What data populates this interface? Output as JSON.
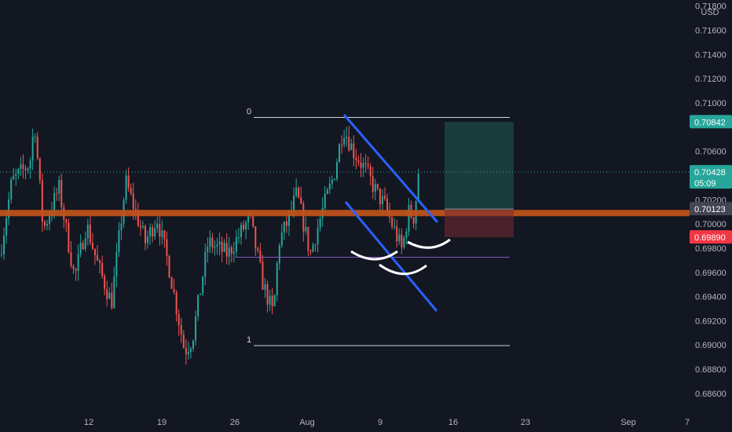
{
  "chart_data": {
    "type": "candlestick",
    "currency": "USD",
    "y_range": [
      0.6845,
      0.7185
    ],
    "y_ticks": [
      "0.71800",
      "0.71600",
      "0.71400",
      "0.71200",
      "0.71000",
      "0.70600",
      "0.70200",
      "0.70000",
      "0.69800",
      "0.69600",
      "0.69400",
      "0.69200",
      "0.69000",
      "0.68800",
      "0.68600"
    ],
    "x_ticks": [
      "12",
      "19",
      "26",
      "Aug",
      "9",
      "16",
      "23",
      "Sep",
      "7"
    ],
    "price_badges": [
      {
        "value": "0.70842",
        "color": "#26a69a",
        "role": "take-profit"
      },
      {
        "value": "0.70428",
        "extra": "05:09",
        "color": "#26a69a",
        "role": "last-price"
      },
      {
        "value": "0.70123",
        "color": "#434651",
        "role": "entry"
      },
      {
        "value": "0.69890",
        "color": "#f23645",
        "role": "stop-loss"
      }
    ],
    "fib_labels": [
      "0",
      "1"
    ],
    "levels": {
      "support_zone": 0.7009,
      "fib_0": 0.7088,
      "fib_1": 0.68995,
      "purple_level": 0.69725,
      "last_price": 0.70428,
      "entry": 0.70123,
      "take_profit": 0.70842,
      "stop_loss": 0.6989
    },
    "colors": {
      "up": "#26a69a",
      "down": "#ef5350",
      "zone": "#c2541b",
      "trend": "#2962ff",
      "purple": "#7e57c2",
      "background": "#131722"
    }
  }
}
